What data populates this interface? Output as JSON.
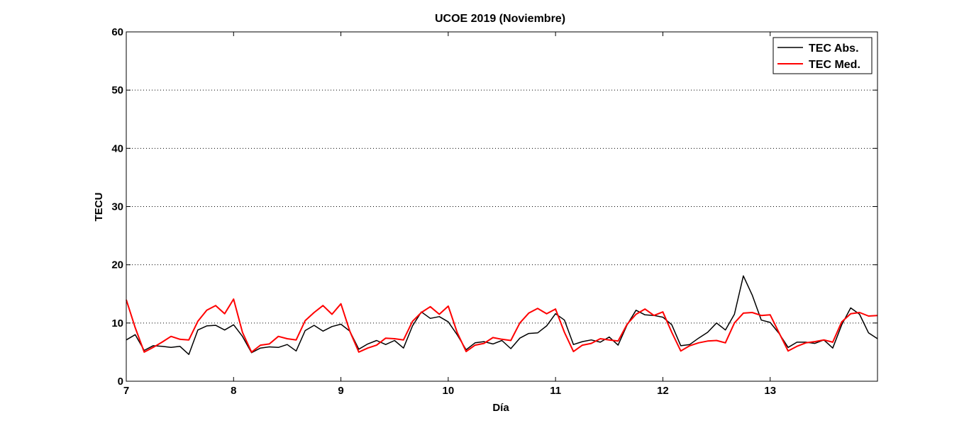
{
  "chart_data": {
    "type": "line",
    "title": "UCOE 2019 (Noviembre)",
    "xlabel": "Día",
    "ylabel": "TECU",
    "xlim": [
      7,
      14
    ],
    "ylim": [
      0,
      60
    ],
    "xticks": [
      "7",
      "8",
      "9",
      "10",
      "11",
      "12",
      "13"
    ],
    "yticks": [
      "0",
      "10",
      "20",
      "30",
      "40",
      "50",
      "60"
    ],
    "grid": "horizontal-dotted",
    "legend": "top-right",
    "series": [
      {
        "name": "TEC Abs.",
        "color": "#000000",
        "x": [
          7.0,
          7.083,
          7.167,
          7.25,
          7.333,
          7.417,
          7.5,
          7.583,
          7.667,
          7.75,
          7.833,
          7.917,
          8.0,
          8.083,
          8.167,
          8.25,
          8.333,
          8.417,
          8.5,
          8.583,
          8.667,
          8.75,
          8.833,
          8.917,
          9.0,
          9.083,
          9.167,
          9.25,
          9.333,
          9.417,
          9.5,
          9.583,
          9.667,
          9.75,
          9.833,
          9.917,
          10.0,
          10.083,
          10.167,
          10.25,
          10.333,
          10.417,
          10.5,
          10.583,
          10.667,
          10.75,
          10.833,
          10.917,
          11.0,
          11.083,
          11.167,
          11.25,
          11.333,
          11.417,
          11.5,
          11.583,
          11.667,
          11.75,
          11.833,
          11.917,
          12.0,
          12.083,
          12.167,
          12.25,
          12.333,
          12.417,
          12.5,
          12.583,
          12.667,
          12.75,
          12.833,
          12.917,
          13.0,
          13.083,
          13.167,
          13.25,
          13.333,
          13.417,
          13.5,
          13.583,
          13.667,
          13.75,
          13.833,
          13.917,
          14.0
        ],
        "values": [
          7.1,
          8.0,
          5.3,
          6.1,
          6.0,
          5.8,
          6.0,
          4.6,
          8.8,
          9.5,
          9.6,
          8.8,
          9.7,
          7.7,
          4.9,
          5.7,
          5.9,
          5.8,
          6.3,
          5.2,
          8.7,
          9.6,
          8.6,
          9.4,
          9.8,
          8.6,
          5.5,
          6.4,
          7.0,
          6.3,
          7.0,
          5.7,
          9.5,
          11.9,
          10.8,
          11.1,
          10.2,
          8.0,
          5.4,
          6.6,
          6.8,
          6.4,
          7.0,
          5.6,
          7.4,
          8.2,
          8.3,
          9.5,
          11.6,
          10.5,
          6.3,
          6.8,
          7.1,
          6.7,
          7.6,
          6.2,
          9.7,
          12.2,
          11.4,
          11.3,
          11.0,
          9.7,
          6.1,
          6.3,
          7.4,
          8.4,
          10.0,
          8.8,
          11.5,
          18.1,
          14.8,
          10.5,
          10.1,
          8.2,
          5.8,
          6.7,
          6.7,
          6.5,
          7.1,
          5.7,
          9.7,
          12.6,
          11.5,
          8.3,
          7.3
        ]
      },
      {
        "name": "TEC Med.",
        "color": "#ff0000",
        "x": [
          7.0,
          7.083,
          7.167,
          7.25,
          7.333,
          7.417,
          7.5,
          7.583,
          7.667,
          7.75,
          7.833,
          7.917,
          8.0,
          8.083,
          8.167,
          8.25,
          8.333,
          8.417,
          8.5,
          8.583,
          8.667,
          8.75,
          8.833,
          8.917,
          9.0,
          9.083,
          9.167,
          9.25,
          9.333,
          9.417,
          9.5,
          9.583,
          9.667,
          9.75,
          9.833,
          9.917,
          10.0,
          10.083,
          10.167,
          10.25,
          10.333,
          10.417,
          10.5,
          10.583,
          10.667,
          10.75,
          10.833,
          10.917,
          11.0,
          11.083,
          11.167,
          11.25,
          11.333,
          11.417,
          11.5,
          11.583,
          11.667,
          11.75,
          11.833,
          11.917,
          12.0,
          12.083,
          12.167,
          12.25,
          12.333,
          12.417,
          12.5,
          12.583,
          12.667,
          12.75,
          12.833,
          12.917,
          13.0,
          13.083,
          13.167,
          13.25,
          13.333,
          13.417,
          13.5,
          13.583,
          13.667,
          13.75,
          13.833,
          13.917,
          14.0
        ],
        "values": [
          14.0,
          9.2,
          5.0,
          5.8,
          6.7,
          7.7,
          7.2,
          7.1,
          10.3,
          12.2,
          13.0,
          11.6,
          14.1,
          8.4,
          5.0,
          6.2,
          6.4,
          7.7,
          7.3,
          7.1,
          10.4,
          11.8,
          13.0,
          11.5,
          13.3,
          8.6,
          5.0,
          5.7,
          6.2,
          7.4,
          7.3,
          7.1,
          10.3,
          11.8,
          12.8,
          11.5,
          12.9,
          8.4,
          5.1,
          6.2,
          6.5,
          7.5,
          7.2,
          7.0,
          10.0,
          11.7,
          12.5,
          11.6,
          12.4,
          8.4,
          5.1,
          6.2,
          6.5,
          7.3,
          7.1,
          6.9,
          9.8,
          11.5,
          12.4,
          11.3,
          11.9,
          8.4,
          5.2,
          6.1,
          6.6,
          6.9,
          7.0,
          6.6,
          10.0,
          11.7,
          11.8,
          11.3,
          11.4,
          8.3,
          5.2,
          6.0,
          6.6,
          6.8,
          7.1,
          6.7,
          10.2,
          11.6,
          11.8,
          11.2,
          11.3
        ]
      }
    ]
  }
}
